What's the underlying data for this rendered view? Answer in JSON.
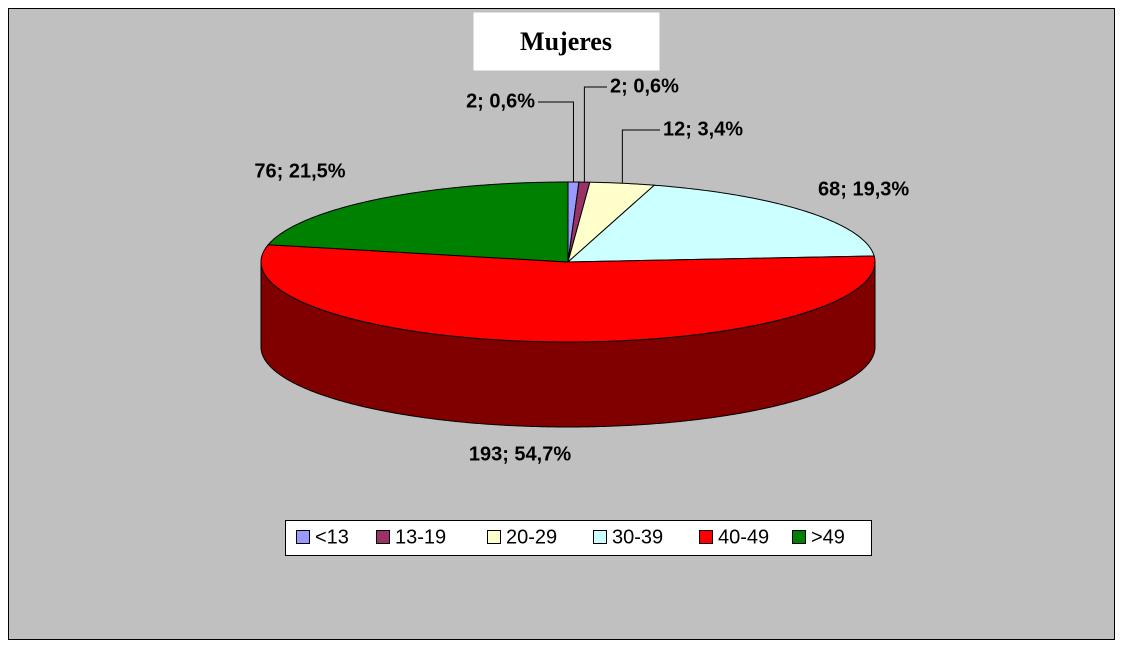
{
  "chart_data": {
    "type": "pie",
    "title": "Mujeres",
    "categories": [
      "<13",
      "13-19",
      "20-29",
      "30-39",
      "40-49",
      ">49"
    ],
    "values": [
      2,
      2,
      12,
      68,
      193,
      76
    ],
    "value_labels": [
      "2; 0,6%",
      "2; 0,6%",
      "12; 3,4%",
      "68; 19,3%",
      "193; 54,7%",
      "76; 21,5%"
    ],
    "colors": [
      "#9999ff",
      "#993366",
      "#ffffcc",
      "#ccffff",
      "#ff0000",
      "#008000"
    ],
    "legend": "bottom"
  }
}
